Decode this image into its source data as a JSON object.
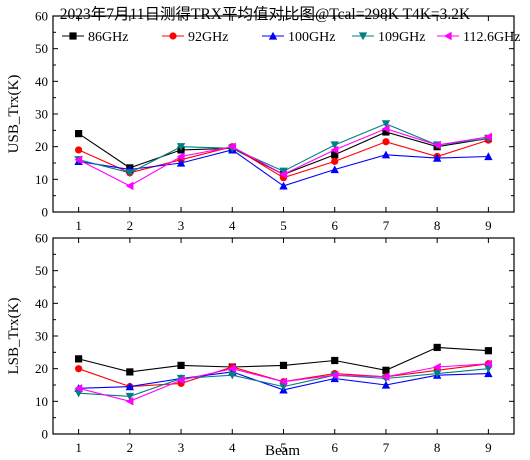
{
  "title": "2023年7月11日测得TRX平均值对比图@Tcal=298K T4K=3.2K",
  "colors": {
    "86GHz": "#000000",
    "92GHz": "#ff0000",
    "100GHz": "#0000ff",
    "109GHz": "#008080",
    "112.6GHz": "#ff00ff"
  },
  "chart_data": [
    {
      "type": "line",
      "ylabel": "USB_Trx(K)",
      "xlabel": "",
      "ylim": [
        0,
        60
      ],
      "yticks": [
        0,
        10,
        20,
        30,
        40,
        50,
        60
      ],
      "x": [
        1,
        2,
        3,
        4,
        5,
        6,
        7,
        8,
        9
      ],
      "legend": "top",
      "series": [
        {
          "name": "86GHz",
          "marker": "square",
          "values": [
            24,
            13.5,
            19,
            19.5,
            11.5,
            17.5,
            24.5,
            20,
            22.5
          ]
        },
        {
          "name": "92GHz",
          "marker": "circle",
          "values": [
            19,
            12,
            16,
            20,
            10.5,
            15.5,
            21.5,
            17,
            22
          ]
        },
        {
          "name": "100GHz",
          "marker": "triangle-up",
          "values": [
            15.5,
            13,
            15,
            19,
            8,
            13,
            17.5,
            16.5,
            17
          ]
        },
        {
          "name": "109GHz",
          "marker": "triangle-down",
          "values": [
            16,
            12,
            20,
            19.5,
            12.5,
            20.5,
            27,
            20.5,
            22.5
          ]
        },
        {
          "name": "112.6GHz",
          "marker": "triangle-left",
          "values": [
            16,
            8,
            17,
            20,
            11.5,
            19,
            25.5,
            20.5,
            23
          ]
        }
      ]
    },
    {
      "type": "line",
      "ylabel": "LSB_Trx(K)",
      "xlabel": "Beam",
      "ylim": [
        0,
        60
      ],
      "yticks": [
        0,
        10,
        20,
        30,
        40,
        50,
        60
      ],
      "x": [
        1,
        2,
        3,
        4,
        5,
        6,
        7,
        8,
        9
      ],
      "series": [
        {
          "name": "86GHz",
          "marker": "square",
          "values": [
            23,
            19,
            21,
            20.5,
            21,
            22.5,
            19.5,
            26.5,
            25.5
          ]
        },
        {
          "name": "92GHz",
          "marker": "circle",
          "values": [
            20,
            14.5,
            15.5,
            20.5,
            16,
            18.5,
            17.5,
            19.5,
            21.5
          ]
        },
        {
          "name": "100GHz",
          "marker": "triangle-up",
          "values": [
            14,
            14.5,
            17,
            19,
            13.5,
            17,
            15,
            18,
            18.5
          ]
        },
        {
          "name": "109GHz",
          "marker": "triangle-down",
          "values": [
            12.5,
            11.5,
            17,
            18,
            14.5,
            18,
            17,
            18.5,
            20
          ]
        },
        {
          "name": "112.6GHz",
          "marker": "triangle-left",
          "values": [
            14,
            10,
            16.5,
            20,
            16,
            18,
            17.5,
            20.5,
            21.5
          ]
        }
      ]
    }
  ]
}
